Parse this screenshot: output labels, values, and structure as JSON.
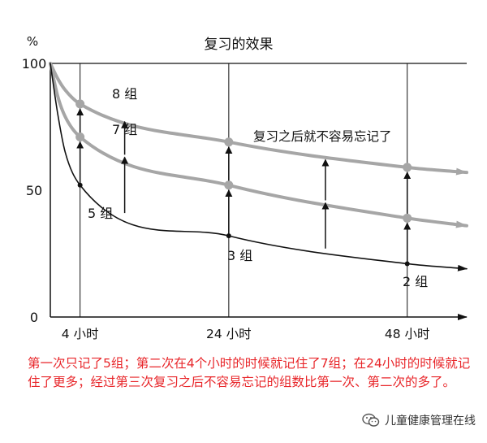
{
  "chart_data": {
    "type": "line",
    "title": "复习的效果",
    "y_unit": "%",
    "ylim": [
      0,
      100
    ],
    "y_ticks": [
      "0",
      "50",
      "100"
    ],
    "x_ticks": [
      "4 小时",
      "24 小时",
      "48 小时"
    ],
    "x_tick_positions_hours": [
      4,
      24,
      48
    ],
    "xlim": [
      0,
      56
    ],
    "grid": "vertical lines at 4, 24, 48 h; horizontal line at 100",
    "series": [
      {
        "label": "8 组",
        "color": "#a6a6a6",
        "points": [
          [
            0,
            100
          ],
          [
            4,
            84
          ],
          [
            24,
            69
          ],
          [
            48,
            59
          ],
          [
            56,
            57
          ]
        ]
      },
      {
        "label": "7 组",
        "color": "#a6a6a6",
        "points": [
          [
            0,
            100
          ],
          [
            4,
            71
          ],
          [
            24,
            52
          ],
          [
            48,
            39
          ],
          [
            56,
            36
          ]
        ]
      },
      {
        "label": "5 组",
        "color": "#111111",
        "points": [
          [
            0,
            100
          ],
          [
            4,
            52
          ],
          [
            24,
            32
          ],
          [
            48,
            21
          ],
          [
            56,
            19
          ]
        ]
      }
    ],
    "point_labels": {
      "s8": "8 组",
      "s7": "7 组",
      "s5": "5 组",
      "s3": "3 组",
      "s2": "2 组"
    },
    "annotation": "复习之后就不容易忘记了",
    "review_arrows": [
      {
        "x": 4,
        "from": 52,
        "to": 69
      },
      {
        "x": 4,
        "from": 71,
        "to": 82
      },
      {
        "x": 10,
        "from": 41,
        "to": 63
      },
      {
        "x": 10,
        "from": 64,
        "to": 77
      },
      {
        "x": 24,
        "from": 32,
        "to": 50
      },
      {
        "x": 24,
        "from": 53,
        "to": 67
      },
      {
        "x": 37,
        "from": 27,
        "to": 45
      },
      {
        "x": 37,
        "from": 46,
        "to": 62
      },
      {
        "x": 48,
        "from": 21,
        "to": 37
      },
      {
        "x": 48,
        "from": 40,
        "to": 57
      }
    ]
  },
  "caption": "第一次只记了5组；第二次在4个小时的时候就记住了7组；在24小时的时候就记住了更多；经过第三次复习之后不容易忘记的组数比第一次、第二次的多了。",
  "watermark": "儿童健康管理在线",
  "colors": {
    "gray_curve": "#a6a6a6",
    "black_curve": "#111111",
    "caption": "#e8262a"
  }
}
